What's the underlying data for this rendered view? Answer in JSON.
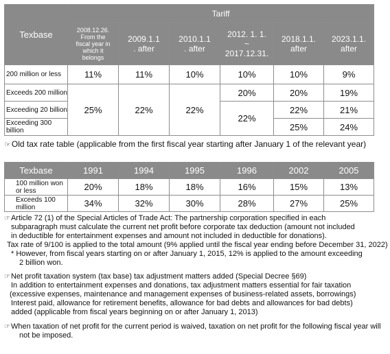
{
  "table1": {
    "texbase_label": "Texbase",
    "tariff_label": "Tariff",
    "columns": [
      "2008.12.26.\nFrom the\nfiscal year in\nwhich it\nbelongs",
      "2009.1.1\n. after",
      "2010.1.1\n. after",
      "2012. 1. 1.\n~\n2017.12.31.",
      "2018.1.1.\nafter",
      "2023.1.1.\nafter"
    ],
    "rows": [
      {
        "label": "200 million or less",
        "values": [
          "11%",
          "11%",
          "10%",
          "10%",
          "10%",
          "9%"
        ]
      },
      {
        "label": "Exceeds 200 million",
        "values": [
          "20%",
          "20%",
          "19%"
        ]
      },
      {
        "label": "Exceeding 20 billion",
        "values": [
          "22%",
          "21%"
        ]
      },
      {
        "label": "Exceeding 300 billion",
        "values": [
          "25%",
          "24%"
        ]
      }
    ],
    "merged": {
      "col1": "25%",
      "col2": "22%",
      "col3": "22%",
      "col4": "22%"
    }
  },
  "caption": {
    "mark": "☞",
    "text": "Old tax rate table (applicable from the first fiscal year starting after January 1 of the relevant year)"
  },
  "table2": {
    "texbase_label": "Texbase",
    "years": [
      "1991",
      "1994",
      "1995",
      "1996",
      "2002",
      "2005"
    ],
    "rows": [
      {
        "label": "100 million won or less",
        "values": [
          "20%",
          "18%",
          "18%",
          "16%",
          "15%",
          "13%"
        ]
      },
      {
        "label": "Exceeds 100 million",
        "values": [
          "34%",
          "32%",
          "30%",
          "28%",
          "27%",
          "25%"
        ]
      }
    ]
  },
  "notes": {
    "mark": "☞",
    "article72": [
      "Article 72 (1) of the Special Articles of Trade Act: The partnership corporation specified in each",
      "subparagraph must calculate the current net profit before corporate tax deduction (amount not included",
      "in deductible for entertainment expenses and amount not included in deductible for donations).",
      "Tax rate of 9/100 is applied to the total amount (9% applied until the fiscal year ending before December 31, 2022)",
      "* However, from fiscal years starting on or after January 1, 2015, 12% is applied to the amount exceeding",
      "2 billion won."
    ],
    "net_profit": [
      "Net profit taxation system (tax base) tax adjustment matters added (Special Decree §69)",
      "In addition to entertainment expenses and donations, tax adjustment matters essential for fair taxation",
      "(excessive expenses, maintenance and management expenses of business-related assets, borrowings)",
      "Interest paid, allowance for retirement benefits, allowance for bad debts and allowances for bad debts)",
      "added (applicable from fiscal years beginning on or after January 1, 2013)"
    ],
    "waived": [
      "When taxation of net profit for the current period is waived, taxation on net profit for the following fiscal year will",
      "not be imposed."
    ]
  }
}
